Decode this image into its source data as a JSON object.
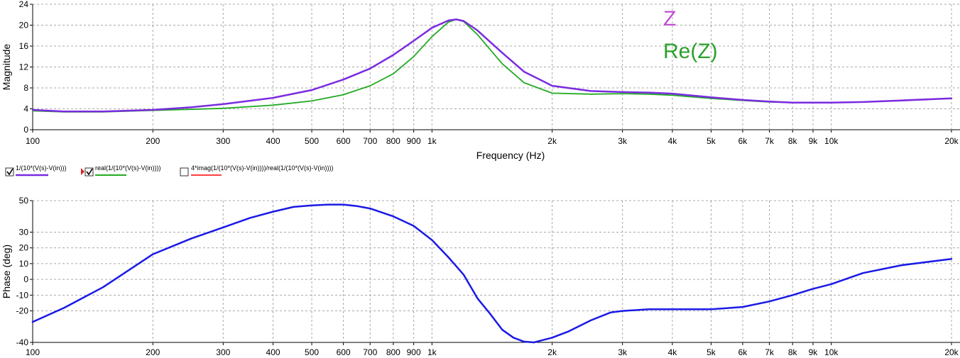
{
  "overlay_labels": [
    {
      "text": "Z",
      "color": "#c050d0"
    },
    {
      "text": "Re(Z)",
      "color": "#2ca02c"
    }
  ],
  "legend": [
    {
      "label": "1/(10*(V(s)-V(in)))",
      "checked": true,
      "color": "#7a2be0"
    },
    {
      "label": "real(1/(10*(V(s)-V(in))))",
      "checked": true,
      "color": "#22aa22"
    },
    {
      "label": "4*imag(1/(10*(V(s)-V(in))))/real(1/(10*(V(s)-V(in))))",
      "checked": false,
      "color": "#ff0000"
    }
  ],
  "chart_data": [
    {
      "type": "line",
      "xscale": "log",
      "xlabel": "Frequency (Hz)",
      "ylabel": "Magnitude",
      "xlim": [
        100,
        20000
      ],
      "ylim": [
        0,
        24
      ],
      "x_ticks": [
        100,
        200,
        300,
        400,
        500,
        600,
        700,
        800,
        900,
        1000,
        2000,
        3000,
        4000,
        5000,
        6000,
        7000,
        8000,
        9000,
        10000,
        20000
      ],
      "x_tick_labels": [
        "100",
        "200",
        "300",
        "400",
        "500",
        "600",
        "700",
        "800",
        "900",
        "1k",
        "2k",
        "3k",
        "4k",
        "5k",
        "6k",
        "7k",
        "8k",
        "9k",
        "10k",
        "20k"
      ],
      "y_ticks": [
        0,
        4,
        8,
        12,
        16,
        20,
        24
      ],
      "grid": true,
      "series": [
        {
          "name": "1/(10*(V(s)-V(in)))",
          "color": "#7a2be0",
          "x": [
            100,
            120,
            150,
            200,
            250,
            300,
            400,
            500,
            600,
            700,
            800,
            900,
            1000,
            1100,
            1150,
            1200,
            1300,
            1500,
            1700,
            2000,
            2500,
            3000,
            3500,
            4000,
            5000,
            6000,
            7000,
            8000,
            9000,
            10000,
            12000,
            15000,
            20000
          ],
          "y": [
            3.8,
            3.5,
            3.5,
            3.8,
            4.3,
            4.9,
            6.1,
            7.6,
            9.6,
            11.7,
            14.3,
            17.0,
            19.5,
            20.9,
            21.1,
            20.8,
            19.0,
            14.7,
            11.1,
            8.4,
            7.4,
            7.2,
            7.1,
            6.9,
            6.2,
            5.7,
            5.4,
            5.2,
            5.2,
            5.2,
            5.3,
            5.6,
            6.0
          ]
        },
        {
          "name": "real(1/(10*(V(s)-V(in))))",
          "color": "#22aa22",
          "x": [
            100,
            120,
            150,
            200,
            250,
            300,
            400,
            500,
            600,
            700,
            800,
            900,
            1000,
            1100,
            1150,
            1200,
            1300,
            1500,
            1700,
            2000,
            2500,
            3000,
            3500,
            4000,
            5000,
            6000,
            7000,
            8000,
            9000,
            10000,
            12000,
            15000,
            20000
          ],
          "y": [
            3.6,
            3.4,
            3.4,
            3.7,
            3.9,
            4.1,
            4.7,
            5.5,
            6.7,
            8.4,
            10.7,
            14.0,
            17.8,
            20.6,
            21.1,
            20.7,
            18.2,
            12.6,
            9.0,
            7.0,
            6.8,
            6.9,
            6.8,
            6.6,
            6.0,
            5.6,
            5.3,
            5.2,
            5.2,
            5.2,
            5.3,
            5.6,
            6.0
          ]
        }
      ]
    },
    {
      "type": "line",
      "xscale": "log",
      "xlabel": "",
      "ylabel": "Phase (deg)",
      "xlim": [
        100,
        20000
      ],
      "ylim": [
        -40,
        50
      ],
      "x_ticks": [
        100,
        200,
        300,
        400,
        500,
        600,
        700,
        800,
        900,
        1000,
        2000,
        3000,
        4000,
        5000,
        6000,
        7000,
        8000,
        9000,
        10000,
        20000
      ],
      "x_tick_labels": [
        "100",
        "200",
        "300",
        "400",
        "500",
        "600",
        "700",
        "800",
        "900",
        "1k",
        "2k",
        "3k",
        "4k",
        "5k",
        "6k",
        "7k",
        "8k",
        "9k",
        "10k",
        "20k"
      ],
      "y_ticks": [
        -40,
        -20,
        -10,
        0,
        10,
        20,
        30,
        50
      ],
      "grid": true,
      "series": [
        {
          "name": "",
          "color": "#1a1ae6",
          "x": [
            100,
            120,
            150,
            200,
            250,
            300,
            350,
            400,
            450,
            500,
            550,
            600,
            650,
            700,
            800,
            900,
            1000,
            1100,
            1200,
            1300,
            1400,
            1500,
            1600,
            1700,
            1800,
            2000,
            2200,
            2500,
            2800,
            3000,
            3500,
            4000,
            5000,
            6000,
            7000,
            8000,
            9000,
            10000,
            12000,
            15000,
            20000
          ],
          "y": [
            -27,
            -18,
            -5,
            16,
            26,
            33,
            39,
            43,
            46,
            47,
            47.5,
            47.5,
            46.5,
            45,
            40,
            34,
            25,
            14,
            3,
            -12,
            -22,
            -32,
            -37,
            -39.5,
            -40,
            -37,
            -33,
            -26,
            -21,
            -20,
            -19,
            -19,
            -19,
            -17.5,
            -14,
            -10,
            -6,
            -3,
            4,
            9,
            13
          ]
        }
      ]
    }
  ]
}
